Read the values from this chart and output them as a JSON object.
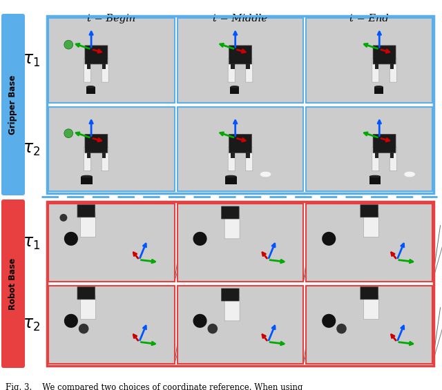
{
  "title_begin": "t = Begin",
  "title_middle": "t = Middle",
  "title_end": "t = End",
  "label_gripper": "Gripper Base",
  "label_robot": "Robot Base",
  "caption": "Fig. 3.    We compared two choices of coordinate reference. When using",
  "blue_color": "#5aaeea",
  "red_color": "#e84040",
  "dashed_color": "#5aaeea",
  "bg_color": "#ffffff",
  "fig_width": 6.4,
  "fig_height": 5.65,
  "dpi": 100
}
